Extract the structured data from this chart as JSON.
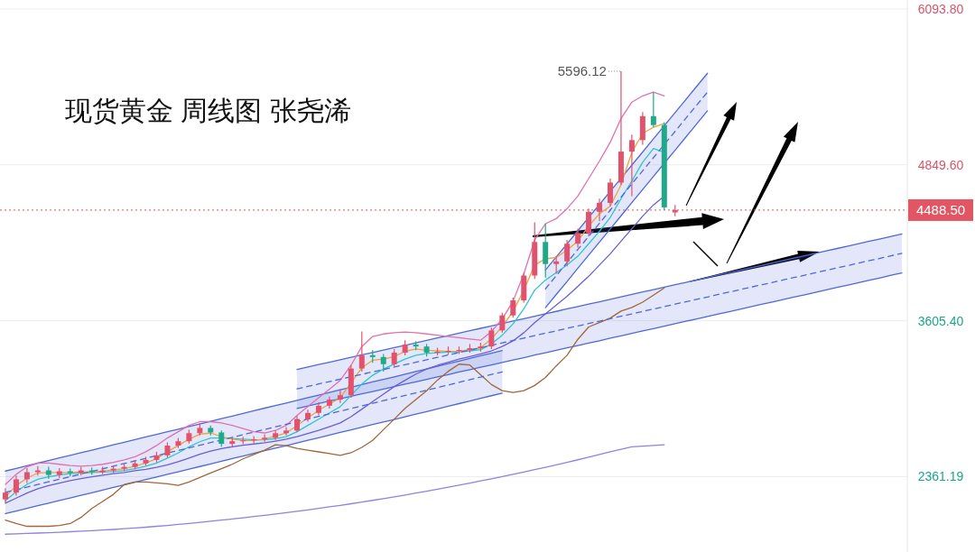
{
  "chart_data": {
    "type": "candlestick",
    "title": "现货黄金 周线图 张尧浠",
    "categories": [
      null,
      null,
      null,
      null,
      null,
      null,
      null,
      null,
      null,
      null,
      null,
      null,
      null,
      null,
      null,
      null,
      null,
      null,
      null,
      null,
      null,
      null,
      null,
      null,
      null,
      null,
      null,
      null,
      null,
      null,
      null,
      null,
      null,
      null,
      null,
      null,
      null,
      null,
      null,
      null,
      null,
      null,
      null,
      null,
      null,
      null,
      null,
      null,
      null,
      null,
      null,
      null,
      null,
      null,
      null,
      null,
      null,
      null,
      null,
      null,
      null,
      null,
      null,
      null,
      null,
      null,
      null,
      null,
      null,
      null,
      null,
      null,
      null,
      null,
      null,
      null,
      null,
      null,
      null,
      null,
      null,
      null,
      null,
      null
    ],
    "ylim": [
      1760,
      6165
    ],
    "yticks": [
      {
        "value": 6093.8,
        "label": "6093.80"
      },
      {
        "value": 4849.6,
        "label": "4849.60"
      },
      {
        "value": 3605.4,
        "label": "3605.40"
      },
      {
        "value": 2361.19,
        "label": "2361.19"
      }
    ],
    "tick_labels": "y",
    "grid": "y",
    "ohlc": [
      [
        2180,
        2270,
        2150,
        2234
      ],
      [
        2234,
        2370,
        2210,
        2340
      ],
      [
        2340,
        2430,
        2310,
        2397
      ],
      [
        2397,
        2445,
        2370,
        2411
      ],
      [
        2411,
        2440,
        2345,
        2375
      ],
      [
        2375,
        2430,
        2350,
        2404
      ],
      [
        2404,
        2425,
        2365,
        2390
      ],
      [
        2390,
        2440,
        2370,
        2411
      ],
      [
        2411,
        2435,
        2375,
        2397
      ],
      [
        2397,
        2440,
        2380,
        2411
      ],
      [
        2411,
        2450,
        2390,
        2425
      ],
      [
        2425,
        2465,
        2405,
        2439
      ],
      [
        2439,
        2490,
        2420,
        2467
      ],
      [
        2467,
        2520,
        2450,
        2495
      ],
      [
        2495,
        2560,
        2475,
        2531
      ],
      [
        2531,
        2635,
        2515,
        2609
      ],
      [
        2609,
        2670,
        2590,
        2644
      ],
      [
        2644,
        2735,
        2625,
        2708
      ],
      [
        2708,
        2790,
        2690,
        2750
      ],
      [
        2750,
        2770,
        2690,
        2714
      ],
      [
        2714,
        2730,
        2600,
        2623
      ],
      [
        2623,
        2670,
        2600,
        2644
      ],
      [
        2644,
        2680,
        2620,
        2651
      ],
      [
        2651,
        2685,
        2630,
        2660
      ],
      [
        2660,
        2700,
        2640,
        2672
      ],
      [
        2672,
        2730,
        2655,
        2708
      ],
      [
        2708,
        2755,
        2690,
        2729
      ],
      [
        2729,
        2845,
        2715,
        2821
      ],
      [
        2821,
        2895,
        2800,
        2870
      ],
      [
        2870,
        2955,
        2850,
        2927
      ],
      [
        2927,
        3000,
        2905,
        2976
      ],
      [
        2976,
        3060,
        2950,
        3011
      ],
      [
        3011,
        3250,
        2990,
        3224
      ],
      [
        3224,
        3520,
        3200,
        3330
      ],
      [
        3330,
        3370,
        3270,
        3316
      ],
      [
        3316,
        3340,
        3200,
        3259
      ],
      [
        3259,
        3380,
        3240,
        3351
      ],
      [
        3351,
        3450,
        3330,
        3415
      ],
      [
        3415,
        3440,
        3370,
        3400
      ],
      [
        3400,
        3420,
        3320,
        3351
      ],
      [
        3351,
        3390,
        3330,
        3358
      ],
      [
        3358,
        3400,
        3335,
        3365
      ],
      [
        3365,
        3400,
        3340,
        3372
      ],
      [
        3372,
        3420,
        3350,
        3386
      ],
      [
        3386,
        3430,
        3360,
        3400
      ],
      [
        3400,
        3550,
        3380,
        3528
      ],
      [
        3528,
        3670,
        3510,
        3648
      ],
      [
        3648,
        3790,
        3630,
        3768
      ],
      [
        3768,
        3990,
        3750,
        3966
      ],
      [
        3966,
        4390,
        3940,
        4234
      ],
      [
        4234,
        4380,
        3950,
        4058
      ],
      [
        4058,
        4120,
        3980,
        4079
      ],
      [
        4079,
        4250,
        4040,
        4220
      ],
      [
        4220,
        4340,
        4190,
        4305
      ],
      [
        4305,
        4500,
        4280,
        4475
      ],
      [
        4475,
        4580,
        4400,
        4546
      ],
      [
        4546,
        4740,
        4520,
        4708
      ],
      [
        4708,
        5596.12,
        4690,
        4955
      ],
      [
        4955,
        5090,
        4600,
        5047
      ],
      [
        5047,
        5270,
        5010,
        5238
      ],
      [
        5238,
        5429,
        5150,
        5167
      ],
      [
        5167,
        5190,
        4490,
        4510
      ],
      [
        4470,
        4530,
        4440,
        4488.5
      ],
      null,
      null,
      null,
      null,
      null,
      null,
      null,
      null,
      null,
      null,
      null,
      null,
      null,
      null,
      null,
      null,
      null,
      null,
      null,
      null,
      null
    ],
    "colors": [
      "#e2526c",
      "#e2526c",
      "#e2526c",
      "#e2526c",
      "#1fa98a",
      "#e2526c",
      "#1fa98a",
      "#e2526c",
      "#1fa98a",
      "#e2526c",
      "#e2526c",
      "#e2526c",
      "#e2526c",
      "#e2526c",
      "#e2526c",
      "#e2526c",
      "#e2526c",
      "#e2526c",
      "#e2526c",
      "#1fa98a",
      "#1fa98a",
      "#e2526c",
      "#e2526c",
      "#e2526c",
      "#e2526c",
      "#e2526c",
      "#e2526c",
      "#e2526c",
      "#e2526c",
      "#e2526c",
      "#e2526c",
      "#e2526c",
      "#e2526c",
      "#e2526c",
      "#1fa98a",
      "#1fa98a",
      "#e2526c",
      "#e2526c",
      "#1fa98a",
      "#1fa98a",
      "#e2526c",
      "#e2526c",
      "#e2526c",
      "#e2526c",
      "#e2526c",
      "#e2526c",
      "#e2526c",
      "#e2526c",
      "#e2526c",
      "#e2526c",
      "#1fa98a",
      "#e2526c",
      "#e2526c",
      "#e2526c",
      "#e2526c",
      "#e2526c",
      "#e2526c",
      "#e2526c",
      "#e2526c",
      "#e2526c",
      "#1fa98a",
      "#1fa98a",
      "#e2526c",
      null,
      null,
      null,
      null,
      null,
      null,
      null,
      null,
      null,
      null,
      null,
      null,
      null,
      null,
      null,
      null,
      null,
      null,
      null,
      null,
      null
    ],
    "series": [
      {
        "type": "line",
        "color": "#4f68d8",
        "values": [
          2406,
          2427,
          2448,
          2469,
          2490,
          2511,
          2531,
          2552,
          2573,
          2594,
          2615,
          2636,
          2657,
          2678,
          2699,
          2720,
          2740,
          2761,
          2782,
          2803,
          2824,
          2845,
          2866,
          2887,
          2908,
          2929,
          2949,
          2970,
          2991,
          3012,
          3033,
          3054,
          3075,
          3096,
          3117,
          3138,
          3158,
          3179,
          3200,
          3221,
          3242,
          3263,
          3284,
          3305,
          3326,
          3347,
          3367,
          null,
          null,
          null,
          null,
          null,
          null,
          null,
          null,
          null,
          null,
          null,
          null,
          null,
          null,
          null,
          null,
          null,
          null,
          null,
          null,
          null,
          null,
          null,
          null,
          null,
          null,
          null,
          null,
          null,
          null,
          null,
          null,
          null,
          null,
          null,
          null,
          null
        ]
      },
      {
        "type": "line",
        "color": "#4f68d8",
        "values": [
          2066,
          2087,
          2108,
          2129,
          2150,
          2171,
          2191,
          2212,
          2233,
          2254,
          2275,
          2296,
          2317,
          2338,
          2359,
          2380,
          2400,
          2421,
          2442,
          2463,
          2484,
          2505,
          2526,
          2547,
          2568,
          2589,
          2609,
          2630,
          2651,
          2672,
          2693,
          2714,
          2735,
          2756,
          2777,
          2798,
          2818,
          2839,
          2860,
          2881,
          2902,
          2923,
          2944,
          2965,
          2986,
          3007,
          3027,
          null,
          null,
          null,
          null,
          null,
          null,
          null,
          null,
          null,
          null,
          null,
          null,
          null,
          null,
          null,
          null,
          null,
          null,
          null,
          null,
          null,
          null,
          null,
          null,
          null,
          null,
          null,
          null,
          null,
          null,
          null,
          null,
          null,
          null,
          null,
          null,
          null
        ]
      },
      {
        "type": "line",
        "color": "#4f68d8",
        "values": [
          null,
          null,
          null,
          null,
          null,
          null,
          null,
          null,
          null,
          null,
          null,
          null,
          null,
          null,
          null,
          null,
          null,
          null,
          null,
          null,
          null,
          null,
          null,
          null,
          null,
          null,
          null,
          3217,
          3236,
          3256,
          3275,
          3294,
          3314,
          3333,
          3352,
          3371,
          3391,
          3410,
          3429,
          3449,
          3468,
          3487,
          3507,
          3526,
          3545,
          3564,
          3584,
          3603,
          3622,
          3642,
          3661,
          3680,
          3700,
          3719,
          3738,
          3757,
          3777,
          3796,
          3815,
          3835,
          3854,
          3873,
          3893,
          3912,
          3931,
          3950,
          3970,
          3989,
          4008,
          4028,
          4047,
          4066,
          4086,
          4105,
          4124,
          4143,
          4163,
          4182,
          4201,
          4221,
          4240,
          4259,
          4279,
          4298
        ]
      },
      {
        "type": "line",
        "color": "#4f68d8",
        "values": [
          null,
          null,
          null,
          null,
          null,
          null,
          null,
          null,
          null,
          null,
          null,
          null,
          null,
          null,
          null,
          null,
          null,
          null,
          null,
          null,
          null,
          null,
          null,
          null,
          null,
          null,
          null,
          2906,
          2925,
          2945,
          2964,
          2983,
          3003,
          3022,
          3041,
          3060,
          3080,
          3099,
          3118,
          3138,
          3157,
          3176,
          3196,
          3215,
          3234,
          3253,
          3273,
          3292,
          3311,
          3331,
          3350,
          3369,
          3389,
          3408,
          3427,
          3446,
          3466,
          3485,
          3504,
          3524,
          3543,
          3562,
          3582,
          3601,
          3620,
          3639,
          3659,
          3678,
          3697,
          3717,
          3736,
          3755,
          3775,
          3794,
          3813,
          3832,
          3852,
          3871,
          3890,
          3910,
          3929,
          3948,
          3968,
          3987
        ]
      },
      {
        "type": "line",
        "color": "#4f68d8",
        "values": [
          null,
          null,
          null,
          null,
          null,
          null,
          null,
          null,
          null,
          null,
          null,
          null,
          null,
          null,
          null,
          null,
          null,
          null,
          null,
          null,
          null,
          null,
          null,
          null,
          null,
          null,
          null,
          null,
          null,
          null,
          null,
          null,
          null,
          null,
          null,
          null,
          null,
          null,
          null,
          null,
          null,
          null,
          null,
          null,
          null,
          null,
          null,
          null,
          null,
          null,
          4010,
          4115,
          4219,
          4324,
          4429,
          4533,
          4638,
          4743,
          4848,
          4952,
          5057,
          5162,
          5266,
          5371,
          5476,
          5580,
          null,
          null,
          null,
          null,
          null,
          null,
          null,
          null,
          null,
          null,
          null,
          null,
          null,
          null,
          null,
          null,
          null,
          null
        ]
      },
      {
        "type": "line",
        "color": "#4f68d8",
        "values": [
          null,
          null,
          null,
          null,
          null,
          null,
          null,
          null,
          null,
          null,
          null,
          null,
          null,
          null,
          null,
          null,
          null,
          null,
          null,
          null,
          null,
          null,
          null,
          null,
          null,
          null,
          null,
          null,
          null,
          null,
          null,
          null,
          null,
          null,
          null,
          null,
          null,
          null,
          null,
          null,
          null,
          null,
          null,
          null,
          null,
          null,
          null,
          null,
          null,
          null,
          3710,
          3815,
          3919,
          4024,
          4129,
          4233,
          4338,
          4443,
          4548,
          4652,
          4757,
          4862,
          4966,
          5071,
          5176,
          5280,
          null,
          null,
          null,
          null,
          null,
          null,
          null,
          null,
          null,
          null,
          null,
          null,
          null,
          null,
          null,
          null,
          null,
          null
        ]
      },
      {
        "type": "line",
        "color": "#8c84e0",
        "values": [
          1902,
          1905,
          1908,
          1911,
          1914,
          1918,
          1922,
          1926,
          1930,
          1935,
          1940,
          1946,
          1952,
          1958,
          1965,
          1972,
          1980,
          1988,
          1996,
          2005,
          2014,
          2023,
          2033,
          2043,
          2053,
          2063,
          2074,
          2085,
          2096,
          2108,
          2120,
          2132,
          2145,
          2158,
          2172,
          2186,
          2200,
          2215,
          2230,
          2245,
          2261,
          2277,
          2293,
          2310,
          2327,
          2344,
          2362,
          2380,
          2398,
          2417,
          2436,
          2456,
          2476,
          2496,
          2517,
          2538,
          2559,
          2580,
          2600,
          2605,
          2610,
          2616,
          null,
          null,
          null,
          null,
          null,
          null,
          null,
          null,
          null,
          null,
          null,
          null,
          null,
          null,
          null,
          null,
          null,
          null,
          null,
          null,
          null,
          null
        ]
      },
      {
        "type": "line",
        "color": "#a0673a",
        "values": [
          2015,
          1987,
          1965,
          1965,
          1965,
          1972,
          1987,
          2036,
          2107,
          2163,
          2220,
          2298,
          2319,
          2319,
          2312,
          2305,
          2291,
          2319,
          2354,
          2390,
          2425,
          2460,
          2503,
          2538,
          2573,
          2616,
          2609,
          2587,
          2573,
          2559,
          2545,
          2531,
          2552,
          2595,
          2651,
          2736,
          2821,
          2906,
          2976,
          3047,
          3132,
          3202,
          3259,
          3252,
          3174,
          3096,
          3047,
          3033,
          3047,
          3089,
          3153,
          3245,
          3330,
          3457,
          3556,
          3591,
          3627,
          3683,
          3711,
          3754,
          3810,
          3867,
          null,
          null,
          null,
          null,
          null,
          null,
          null,
          null,
          null,
          null,
          null,
          null,
          null,
          null,
          null,
          null,
          null,
          null,
          null,
          null,
          null,
          null
        ]
      },
      {
        "type": "line",
        "color": "#6a5fd0",
        "values": [
          2150,
          2190,
          2230,
          2265,
          2290,
          2310,
          2330,
          2345,
          2360,
          2372,
          2385,
          2395,
          2408,
          2420,
          2435,
          2455,
          2480,
          2510,
          2540,
          2565,
          2585,
          2600,
          2612,
          2622,
          2632,
          2645,
          2660,
          2680,
          2705,
          2730,
          2760,
          2790,
          2840,
          2900,
          2960,
          3020,
          3080,
          3130,
          3180,
          3220,
          3250,
          3275,
          3300,
          3320,
          3340,
          3365,
          3400,
          3445,
          3510,
          3590,
          3660,
          3730,
          3800,
          3880,
          3960,
          4050,
          4140,
          4240,
          4340,
          4440,
          4530,
          4600,
          null,
          null,
          null,
          null,
          null,
          null,
          null,
          null,
          null,
          null,
          null,
          null,
          null,
          null,
          null,
          null,
          null,
          null,
          null,
          null,
          null,
          null
        ]
      },
      {
        "type": "line",
        "color": "#2ec4d0",
        "values": [
          2170,
          2240,
          2300,
          2340,
          2360,
          2375,
          2385,
          2390,
          2395,
          2398,
          2402,
          2410,
          2425,
          2445,
          2470,
          2510,
          2550,
          2600,
          2640,
          2670,
          2670,
          2665,
          2660,
          2655,
          2655,
          2665,
          2680,
          2720,
          2770,
          2820,
          2870,
          2920,
          3010,
          3100,
          3170,
          3220,
          3260,
          3300,
          3330,
          3345,
          3350,
          3355,
          3358,
          3365,
          3375,
          3420,
          3490,
          3580,
          3700,
          3850,
          3930,
          3990,
          4050,
          4120,
          4220,
          4320,
          4430,
          4580,
          4720,
          4870,
          4980,
          4950,
          null,
          null,
          null,
          null,
          null,
          null,
          null,
          null,
          null,
          null,
          null,
          null,
          null,
          null,
          null,
          null,
          null,
          null,
          null,
          null,
          null,
          null
        ]
      },
      {
        "type": "line",
        "color": "#f0a040",
        "values": [
          2200,
          2290,
          2350,
          2390,
          2395,
          2395,
          2395,
          2400,
          2400,
          2405,
          2415,
          2425,
          2445,
          2470,
          2505,
          2560,
          2610,
          2660,
          2700,
          2710,
          2680,
          2660,
          2650,
          2650,
          2660,
          2685,
          2710,
          2770,
          2830,
          2890,
          2940,
          2990,
          3110,
          3230,
          3290,
          3300,
          3320,
          3360,
          3380,
          3370,
          3365,
          3360,
          3362,
          3375,
          3390,
          3460,
          3560,
          3680,
          3850,
          4050,
          4100,
          4110,
          4170,
          4240,
          4360,
          4460,
          4520,
          4690,
          4950,
          5100,
          5150,
          5180,
          null,
          null,
          null,
          null,
          null,
          null,
          null,
          null,
          null,
          null,
          null,
          null,
          null,
          null,
          null,
          null,
          null,
          null,
          null,
          null,
          null,
          null
        ]
      },
      {
        "type": "line",
        "color": "#e070b0",
        "values": [
          2300,
          2380,
          2440,
          2470,
          2470,
          2460,
          2450,
          2445,
          2450,
          2460,
          2475,
          2495,
          2520,
          2560,
          2610,
          2670,
          2720,
          2770,
          2800,
          2800,
          2790,
          2770,
          2745,
          2720,
          2710,
          2730,
          2770,
          2850,
          2920,
          2990,
          3060,
          3130,
          3250,
          3400,
          3480,
          3500,
          3510,
          3515,
          3510,
          3500,
          3490,
          3480,
          3470,
          3460,
          3450,
          3520,
          3620,
          3760,
          3980,
          4250,
          4380,
          4420,
          4500,
          4600,
          4740,
          4880,
          5030,
          5220,
          5350,
          5400,
          5430,
          5400,
          null,
          null,
          null,
          null,
          null,
          null,
          null,
          null,
          null,
          null,
          null,
          null,
          null,
          null,
          null,
          null,
          null,
          null,
          null,
          null,
          null,
          null
        ]
      },
      {
        "type": "line",
        "color": "#4f68d8",
        "line_style": "dashed",
        "values": [
          2236,
          2257,
          2278,
          2299,
          2320,
          2341,
          2361,
          2382,
          2403,
          2424,
          2445,
          2466,
          2487,
          2508,
          2529,
          2550,
          2570,
          2591,
          2612,
          2633,
          2654,
          2675,
          2696,
          2717,
          2738,
          2759,
          2779,
          2800,
          2821,
          2842,
          2863,
          2884,
          2905,
          2926,
          2947,
          2968,
          2988,
          3009,
          3030,
          3051,
          3072,
          3093,
          3114,
          3135,
          3156,
          3177,
          3197,
          null,
          null,
          null,
          null,
          null,
          null,
          null,
          null,
          null,
          null,
          null,
          null,
          null,
          null,
          null,
          null,
          null,
          null,
          null,
          null,
          null,
          null,
          null,
          null,
          null,
          null,
          null,
          null,
          null,
          null,
          null,
          null,
          null,
          null,
          null,
          null,
          null
        ],
        "lower": [
          2066,
          2087,
          2108,
          2129,
          2150,
          2171,
          2191,
          2212,
          2233,
          2254,
          2275,
          2296,
          2317,
          2338,
          2359,
          2380,
          2400,
          2421,
          2442,
          2463,
          2484,
          2505,
          2526,
          2547,
          2568,
          2589,
          2609,
          2630,
          2651,
          2672,
          2693,
          2714,
          2735,
          2756,
          2777,
          2798,
          2818,
          2839,
          2860,
          2881,
          2902,
          2923,
          2944,
          2965,
          2986,
          3007,
          3027,
          null,
          null,
          null,
          null,
          null,
          null,
          null,
          null,
          null,
          null,
          null,
          null,
          null,
          null,
          null,
          null,
          null,
          null,
          null,
          null,
          null,
          null,
          null,
          null,
          null,
          null,
          null,
          null,
          null,
          null,
          null,
          null,
          null,
          null,
          null,
          null,
          null
        ],
        "upper": [
          2406,
          2427,
          2448,
          2469,
          2490,
          2511,
          2531,
          2552,
          2573,
          2594,
          2615,
          2636,
          2657,
          2678,
          2699,
          2720,
          2740,
          2761,
          2782,
          2803,
          2824,
          2845,
          2866,
          2887,
          2908,
          2929,
          2949,
          2970,
          2991,
          3012,
          3033,
          3054,
          3075,
          3096,
          3117,
          3138,
          3158,
          3179,
          3200,
          3221,
          3242,
          3263,
          3284,
          3305,
          3326,
          3347,
          3367,
          null,
          null,
          null,
          null,
          null,
          null,
          null,
          null,
          null,
          null,
          null,
          null,
          null,
          null,
          null,
          null,
          null,
          null,
          null,
          null,
          null,
          null,
          null,
          null,
          null,
          null,
          null,
          null,
          null,
          null,
          null,
          null,
          null,
          null,
          null,
          null,
          null
        ]
      },
      {
        "type": "line",
        "color": "#4f68d8",
        "line_style": "dashed",
        "values": [
          null,
          null,
          null,
          null,
          null,
          null,
          null,
          null,
          null,
          null,
          null,
          null,
          null,
          null,
          null,
          null,
          null,
          null,
          null,
          null,
          null,
          null,
          null,
          null,
          null,
          null,
          null,
          3062,
          3081,
          3101,
          3120,
          3139,
          3159,
          3178,
          3197,
          3216,
          3236,
          3255,
          3274,
          3294,
          3313,
          3332,
          3352,
          3371,
          3390,
          3409,
          3429,
          3448,
          3467,
          3487,
          3506,
          3525,
          3545,
          3564,
          3583,
          3602,
          3622,
          3641,
          3660,
          3680,
          3699,
          3718,
          3738,
          3757,
          3776,
          3795,
          3815,
          3834,
          3853,
          3873,
          3892,
          3911,
          3931,
          3950,
          3969,
          3988,
          4008,
          4027,
          4046,
          4066,
          4085,
          4104,
          4124,
          4143
        ],
        "lower": [
          null,
          null,
          null,
          null,
          null,
          null,
          null,
          null,
          null,
          null,
          null,
          null,
          null,
          null,
          null,
          null,
          null,
          null,
          null,
          null,
          null,
          null,
          null,
          null,
          null,
          null,
          null,
          2906,
          2925,
          2945,
          2964,
          2983,
          3003,
          3022,
          3041,
          3060,
          3080,
          3099,
          3118,
          3138,
          3157,
          3176,
          3196,
          3215,
          3234,
          3253,
          3273,
          3292,
          3311,
          3331,
          3350,
          3369,
          3389,
          3408,
          3427,
          3446,
          3466,
          3485,
          3504,
          3524,
          3543,
          3562,
          3582,
          3601,
          3620,
          3639,
          3659,
          3678,
          3697,
          3717,
          3736,
          3755,
          3775,
          3794,
          3813,
          3832,
          3852,
          3871,
          3890,
          3910,
          3929,
          3948,
          3968,
          3987
        ],
        "upper": [
          null,
          null,
          null,
          null,
          null,
          null,
          null,
          null,
          null,
          null,
          null,
          null,
          null,
          null,
          null,
          null,
          null,
          null,
          null,
          null,
          null,
          null,
          null,
          null,
          null,
          null,
          null,
          3217,
          3236,
          3256,
          3275,
          3294,
          3314,
          3333,
          3352,
          3371,
          3391,
          3410,
          3429,
          3449,
          3468,
          3487,
          3507,
          3526,
          3545,
          3564,
          3584,
          3603,
          3622,
          3642,
          3661,
          3680,
          3700,
          3719,
          3738,
          3757,
          3777,
          3796,
          3815,
          3835,
          3854,
          3873,
          3893,
          3912,
          3931,
          3950,
          3970,
          3989,
          4008,
          4028,
          4047,
          4066,
          4086,
          4105,
          4124,
          4143,
          4163,
          4182,
          4201,
          4221,
          4240,
          4259,
          4279,
          4298
        ]
      },
      {
        "type": "line",
        "color": "#4f68d8",
        "line_style": "dashed",
        "values": [
          null,
          null,
          null,
          null,
          null,
          null,
          null,
          null,
          null,
          null,
          null,
          null,
          null,
          null,
          null,
          null,
          null,
          null,
          null,
          null,
          null,
          null,
          null,
          null,
          null,
          null,
          null,
          null,
          null,
          null,
          null,
          null,
          null,
          null,
          null,
          null,
          null,
          null,
          null,
          null,
          null,
          null,
          null,
          null,
          null,
          null,
          null,
          null,
          null,
          null,
          3860,
          3965,
          4069,
          4174,
          4279,
          4383,
          4488,
          4593,
          4698,
          4802,
          4907,
          5012,
          5116,
          5221,
          5326,
          5430,
          null,
          null,
          null,
          null,
          null,
          null,
          null,
          null,
          null,
          null,
          null,
          null,
          null,
          null,
          null,
          null,
          null,
          null
        ],
        "lower": [
          null,
          null,
          null,
          null,
          null,
          null,
          null,
          null,
          null,
          null,
          null,
          null,
          null,
          null,
          null,
          null,
          null,
          null,
          null,
          null,
          null,
          null,
          null,
          null,
          null,
          null,
          null,
          null,
          null,
          null,
          null,
          null,
          null,
          null,
          null,
          null,
          null,
          null,
          null,
          null,
          null,
          null,
          null,
          null,
          null,
          null,
          null,
          null,
          null,
          null,
          3710,
          3815,
          3919,
          4024,
          4129,
          4233,
          4338,
          4443,
          4548,
          4652,
          4757,
          4862,
          4966,
          5071,
          5176,
          5280,
          null,
          null,
          null,
          null,
          null,
          null,
          null,
          null,
          null,
          null,
          null,
          null,
          null,
          null,
          null,
          null,
          null,
          null
        ],
        "upper": [
          null,
          null,
          null,
          null,
          null,
          null,
          null,
          null,
          null,
          null,
          null,
          null,
          null,
          null,
          null,
          null,
          null,
          null,
          null,
          null,
          null,
          null,
          null,
          null,
          null,
          null,
          null,
          null,
          null,
          null,
          null,
          null,
          null,
          null,
          null,
          null,
          null,
          null,
          null,
          null,
          null,
          null,
          null,
          null,
          null,
          null,
          null,
          null,
          null,
          null,
          4010,
          4115,
          4219,
          4324,
          4429,
          4533,
          4638,
          4743,
          4848,
          4952,
          5057,
          5162,
          5266,
          5371,
          5476,
          5580,
          null,
          null,
          null,
          null,
          null,
          null,
          null,
          null,
          null,
          null,
          null,
          null,
          null,
          null,
          null,
          null,
          null,
          null
        ]
      }
    ],
    "ref_lines": [
      {
        "axis": "y",
        "value": 4488.5,
        "label": "4488.50",
        "color": "#e25563",
        "line_style": "dotted"
      }
    ],
    "annotations": [
      "5596.12"
    ]
  }
}
